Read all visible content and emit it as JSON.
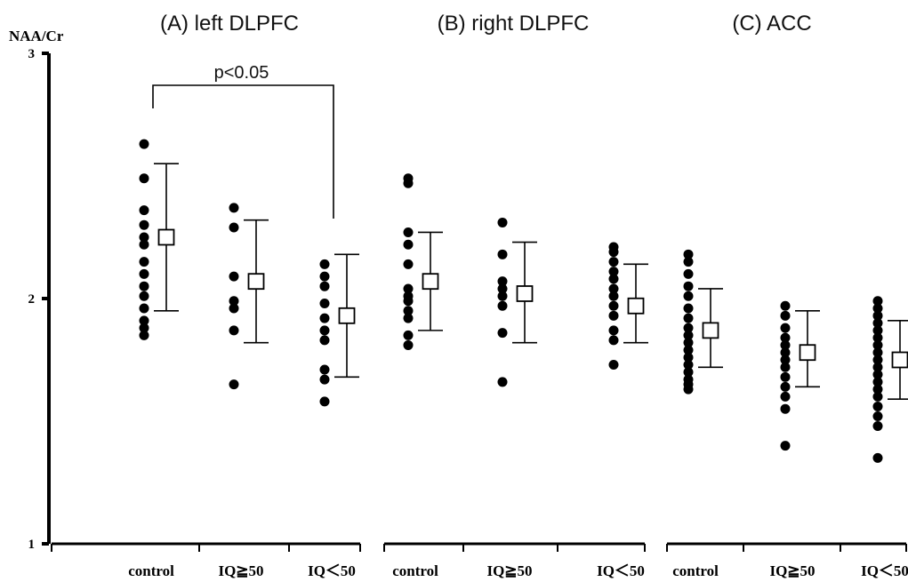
{
  "chart_data": {
    "type": "scatter",
    "ylabel": "NAA/Cr",
    "ylim": [
      1,
      3
    ],
    "yticks": [
      1,
      2,
      3
    ],
    "grid": false,
    "categories": [
      "control",
      "IQ≧50",
      "IQ＜50"
    ],
    "panels": [
      {
        "title": "(A) left DLPFC",
        "groups": [
          {
            "category": "control",
            "mean": 2.25,
            "upper": 2.55,
            "lower": 1.95,
            "points": [
              2.63,
              2.49,
              2.36,
              2.3,
              2.25,
              2.22,
              2.15,
              2.1,
              2.05,
              2.01,
              1.96,
              1.91,
              1.88,
              1.85
            ]
          },
          {
            "category": "IQ≧50",
            "mean": 2.07,
            "upper": 2.32,
            "lower": 1.82,
            "points": [
              2.37,
              2.29,
              2.09,
              1.99,
              1.96,
              1.87,
              1.65
            ]
          },
          {
            "category": "IQ＜50",
            "mean": 1.93,
            "upper": 2.18,
            "lower": 1.68,
            "points": [
              2.14,
              2.09,
              2.05,
              1.98,
              1.92,
              1.87,
              1.83,
              1.71,
              1.67,
              1.58
            ]
          }
        ]
      },
      {
        "title": "(B) right DLPFC",
        "groups": [
          {
            "category": "control",
            "mean": 2.07,
            "upper": 2.27,
            "lower": 1.87,
            "points": [
              2.49,
              2.47,
              2.27,
              2.22,
              2.14,
              2.04,
              2.01,
              1.99,
              1.95,
              1.92,
              1.85,
              1.81
            ]
          },
          {
            "category": "IQ≧50",
            "mean": 2.02,
            "upper": 2.23,
            "lower": 1.82,
            "points": [
              2.31,
              2.18,
              2.07,
              2.04,
              2.01,
              1.97,
              1.86,
              1.66
            ]
          },
          {
            "category": "IQ＜50",
            "mean": 1.97,
            "upper": 2.14,
            "lower": 1.82,
            "points": [
              2.21,
              2.19,
              2.15,
              2.11,
              2.08,
              2.04,
              2.01,
              1.97,
              1.93,
              1.87,
              1.83,
              1.73
            ]
          }
        ]
      },
      {
        "title": "(C) ACC",
        "groups": [
          {
            "category": "control",
            "mean": 1.87,
            "upper": 2.04,
            "lower": 1.72,
            "points": [
              2.18,
              2.15,
              2.1,
              2.05,
              2.01,
              1.96,
              1.92,
              1.88,
              1.85,
              1.82,
              1.79,
              1.76,
              1.73,
              1.7,
              1.67,
              1.65,
              1.63
            ]
          },
          {
            "category": "IQ≧50",
            "mean": 1.78,
            "upper": 1.95,
            "lower": 1.64,
            "points": [
              1.97,
              1.93,
              1.88,
              1.84,
              1.81,
              1.78,
              1.75,
              1.72,
              1.68,
              1.64,
              1.6,
              1.55,
              1.4
            ]
          },
          {
            "category": "IQ＜50",
            "mean": 1.75,
            "upper": 1.91,
            "lower": 1.59,
            "points": [
              1.99,
              1.96,
              1.93,
              1.9,
              1.87,
              1.84,
              1.81,
              1.78,
              1.75,
              1.72,
              1.69,
              1.66,
              1.63,
              1.6,
              1.56,
              1.52,
              1.48,
              1.35
            ]
          }
        ]
      }
    ],
    "annotation": {
      "text": "p<0.05",
      "panel": 0,
      "from": "control",
      "to": "IQ＜50"
    }
  }
}
